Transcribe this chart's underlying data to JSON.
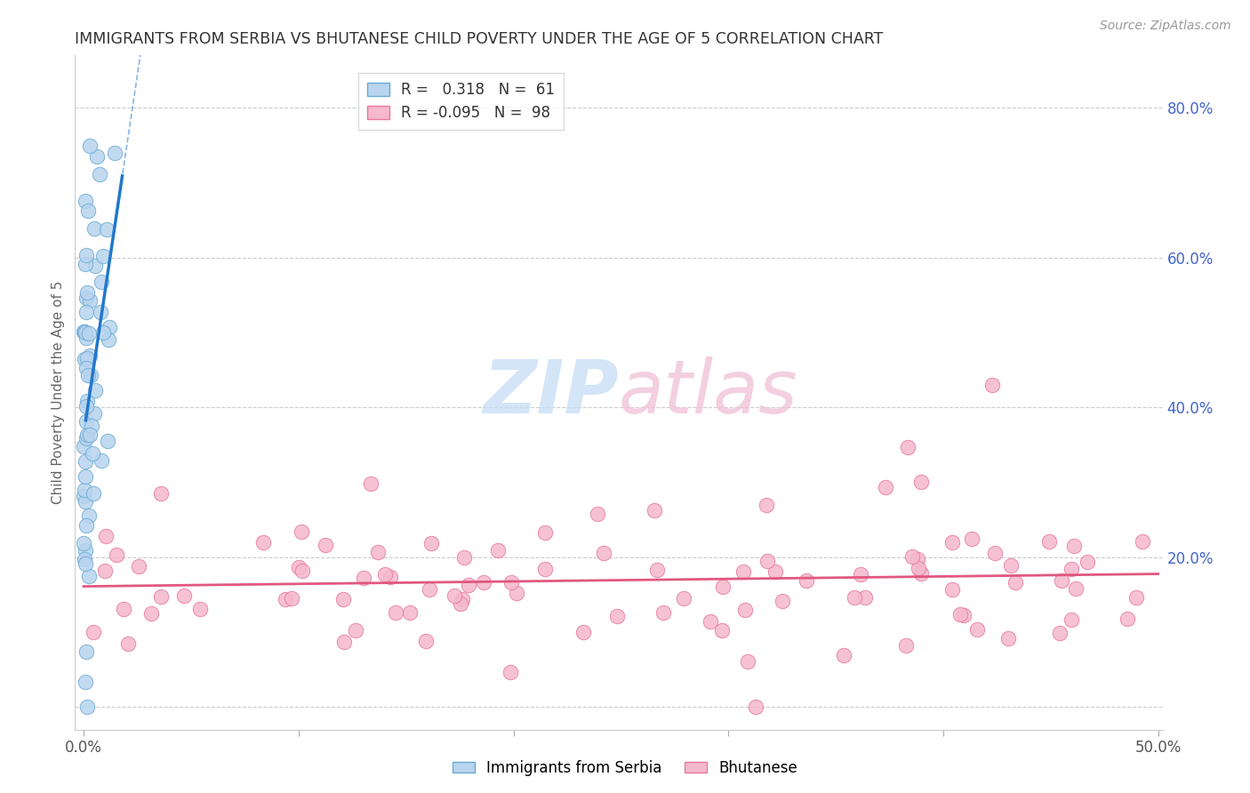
{
  "title": "IMMIGRANTS FROM SERBIA VS BHUTANESE CHILD POVERTY UNDER THE AGE OF 5 CORRELATION CHART",
  "source": "Source: ZipAtlas.com",
  "ylabel": "Child Poverty Under the Age of 5",
  "xlabel_serbia": "Immigrants from Serbia",
  "xlabel_bhutanese": "Bhutanese",
  "xlim": [
    -0.004,
    0.502
  ],
  "ylim": [
    -0.03,
    0.87
  ],
  "right_yticks": [
    0.0,
    0.2,
    0.4,
    0.6,
    0.8
  ],
  "right_yticklabels": [
    "",
    "20.0%",
    "40.0%",
    "60.0%",
    "80.0%"
  ],
  "serbia_R": 0.318,
  "serbia_N": 61,
  "bhutanese_R": -0.095,
  "bhutanese_N": 98,
  "serbia_color": "#b8d4ee",
  "serbia_edge_color": "#6aaad4",
  "serbia_line_color": "#2277cc",
  "bhutanese_color": "#f5b8cc",
  "bhutanese_edge_color": "#e878a0",
  "bhutanese_line_color": "#e05880",
  "watermark_zip_color": "#c5ddf5",
  "watermark_atlas_color": "#f0c0d5",
  "grid_color": "#cccccc",
  "title_color": "#333333",
  "right_tick_color": "#4466cc",
  "axis_tick_color": "#888888",
  "legend_R_color": "#333333",
  "legend_N_color": "#333333"
}
